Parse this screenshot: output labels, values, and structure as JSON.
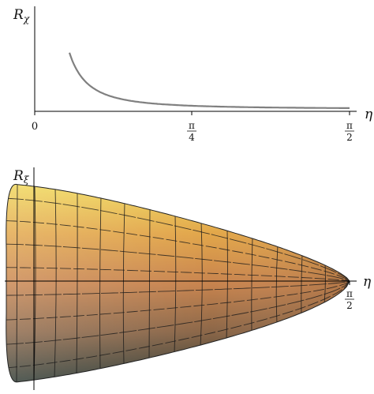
{
  "top_plot": {
    "y_label_base": "R",
    "y_label_sub": "χ",
    "x_label": "η",
    "ticks": [
      {
        "label_type": "plain",
        "text": "0",
        "x_value": 0
      },
      {
        "label_type": "fraction",
        "num": "π",
        "den": "4",
        "x_value": 0.7854
      },
      {
        "label_type": "fraction",
        "num": "π",
        "den": "2",
        "x_value": 1.5708
      }
    ],
    "curve_color": "#808080"
  },
  "bottom_plot": {
    "y_label_base": "R",
    "y_label_sub": "ξ",
    "x_label": "η",
    "tick": {
      "num": "π",
      "den": "2",
      "x_value": 1.5708
    },
    "colors": {
      "top": "#f0d85a",
      "upper_mid": "#e2a64a",
      "mid": "#c8844e",
      "lower_mid": "#8a6648",
      "bottom": "#2f3a33",
      "grid": "#1a1a1a"
    }
  }
}
